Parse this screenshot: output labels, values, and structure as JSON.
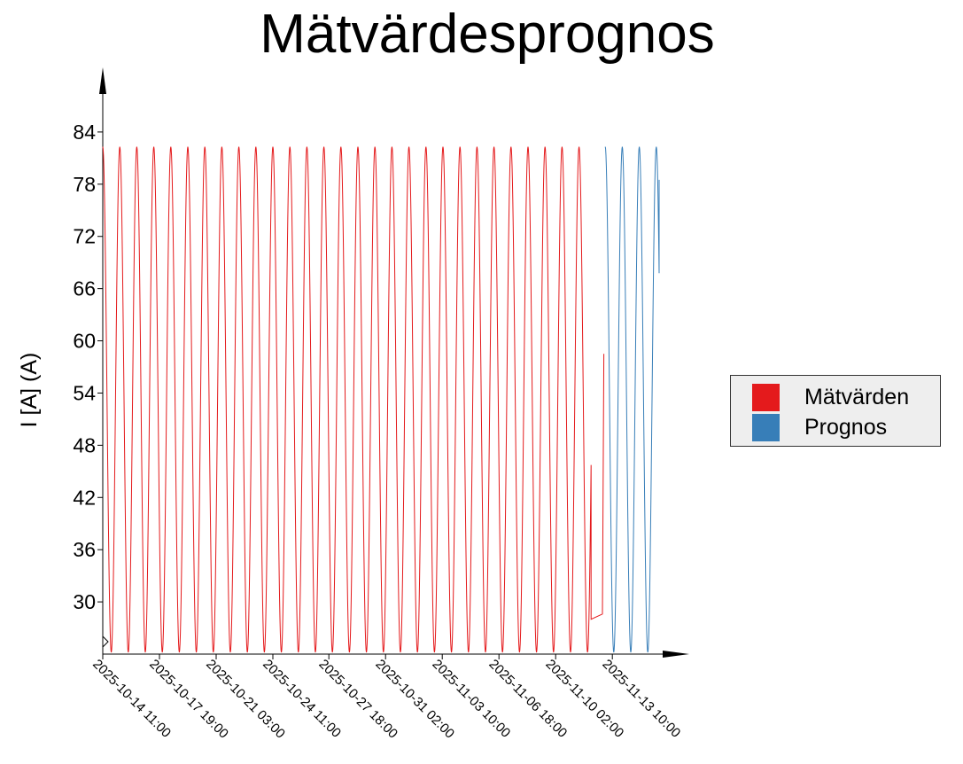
{
  "chart_data": {
    "type": "line",
    "title": "Mätvärdesprognos",
    "ylabel": "I [A] (A)",
    "xlabel": "",
    "ylim": [
      24,
      90
    ],
    "yticks": [
      30,
      36,
      42,
      48,
      54,
      60,
      66,
      72,
      78,
      84
    ],
    "x_start": "2025-10-14 11:00",
    "x_end": "2025-11-17 00:00",
    "xticks": [
      "2025-10-14 11:00",
      "2025-10-17 19:00",
      "2025-10-21 03:00",
      "2025-10-24 11:00",
      "2025-10-27 18:00",
      "2025-10-31 02:00",
      "2025-11-03 10:00",
      "2025-11-06 18:00",
      "2025-11-10 02:00",
      "2025-11-13 10:00"
    ],
    "grid": false,
    "legend_position": "right",
    "series": [
      {
        "name": "Mätvärden",
        "color": "#e41a1c",
        "x_start": "2025-10-14 11:00",
        "x_end": "2025-11-12 22:00",
        "period_hours": 24,
        "min": 24.2,
        "max": 82.3,
        "tail": [
          [
            "2025-11-12 04:00",
            28.0
          ],
          [
            "2025-11-12 20:00",
            28.6
          ],
          [
            "2025-11-12 22:00",
            58.5
          ]
        ]
      },
      {
        "name": "Prognos",
        "color": "#377eb8",
        "x_start": "2025-11-13 00:00",
        "x_end": "2025-11-16 04:00",
        "period_hours": 24,
        "min": 24.2,
        "max": 82.3,
        "last_point": [
          "2025-11-16 04:00",
          78.5
        ]
      }
    ]
  }
}
